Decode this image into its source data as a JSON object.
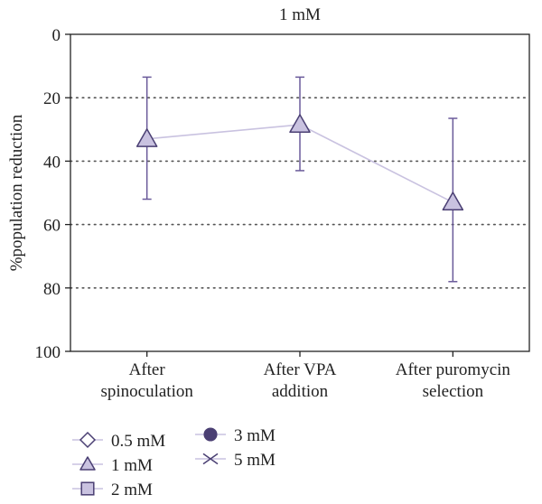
{
  "chart_data": {
    "type": "line",
    "title": "1 mM",
    "ylabel": "%population reduction",
    "xlabel": "",
    "y_axis_inverted": true,
    "ylim": [
      0,
      100
    ],
    "yticks": [
      0,
      20,
      40,
      60,
      80,
      100
    ],
    "grid": "horizontal dotted",
    "categories": [
      "After spinoculation",
      "After VPA addition",
      "After puromycin selection"
    ],
    "category_lines": [
      [
        "After",
        "spinoculation"
      ],
      [
        "After VPA",
        "addition"
      ],
      [
        "After puromycin",
        "selection"
      ]
    ],
    "series": [
      {
        "name": "1 mM",
        "marker": "triangle",
        "values": [
          33,
          28.5,
          53
        ],
        "error_low": [
          13.5,
          13.5,
          26.5
        ],
        "error_high": [
          52,
          43,
          78
        ]
      }
    ],
    "legend": {
      "placement": "bottom-left",
      "items": [
        {
          "label": "0.5 mM",
          "marker": "diamond"
        },
        {
          "label": "1 mM",
          "marker": "triangle"
        },
        {
          "label": "2 mM",
          "marker": "square"
        },
        {
          "label": "3 mM",
          "marker": "circle"
        },
        {
          "label": "5 mM",
          "marker": "cross"
        }
      ]
    },
    "colors": {
      "axis": "#222222",
      "grid": "#555555",
      "line": "#c9c2e0",
      "marker_fill": "#c9c2e0",
      "marker_stroke": "#4a3f73",
      "error_bar": "#6a5a9a",
      "legend_filled": "#4a3f73"
    }
  }
}
